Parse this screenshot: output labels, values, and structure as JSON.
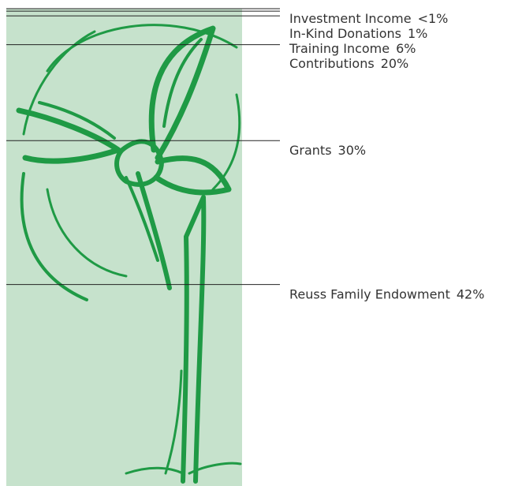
{
  "chart_data": {
    "type": "stacked-column",
    "categories": [
      "Reuss Family Endowment",
      "Grants",
      "Contributions",
      "Training Income",
      "In-Kind Donations",
      "Investment Income"
    ],
    "values": [
      42,
      30,
      20,
      6,
      1,
      0.5
    ],
    "value_labels": [
      "42%",
      "30%",
      "20%",
      "6%",
      "1%",
      "<1%"
    ],
    "color": "#c6e2cc",
    "ylim": [
      0,
      100
    ]
  }
}
